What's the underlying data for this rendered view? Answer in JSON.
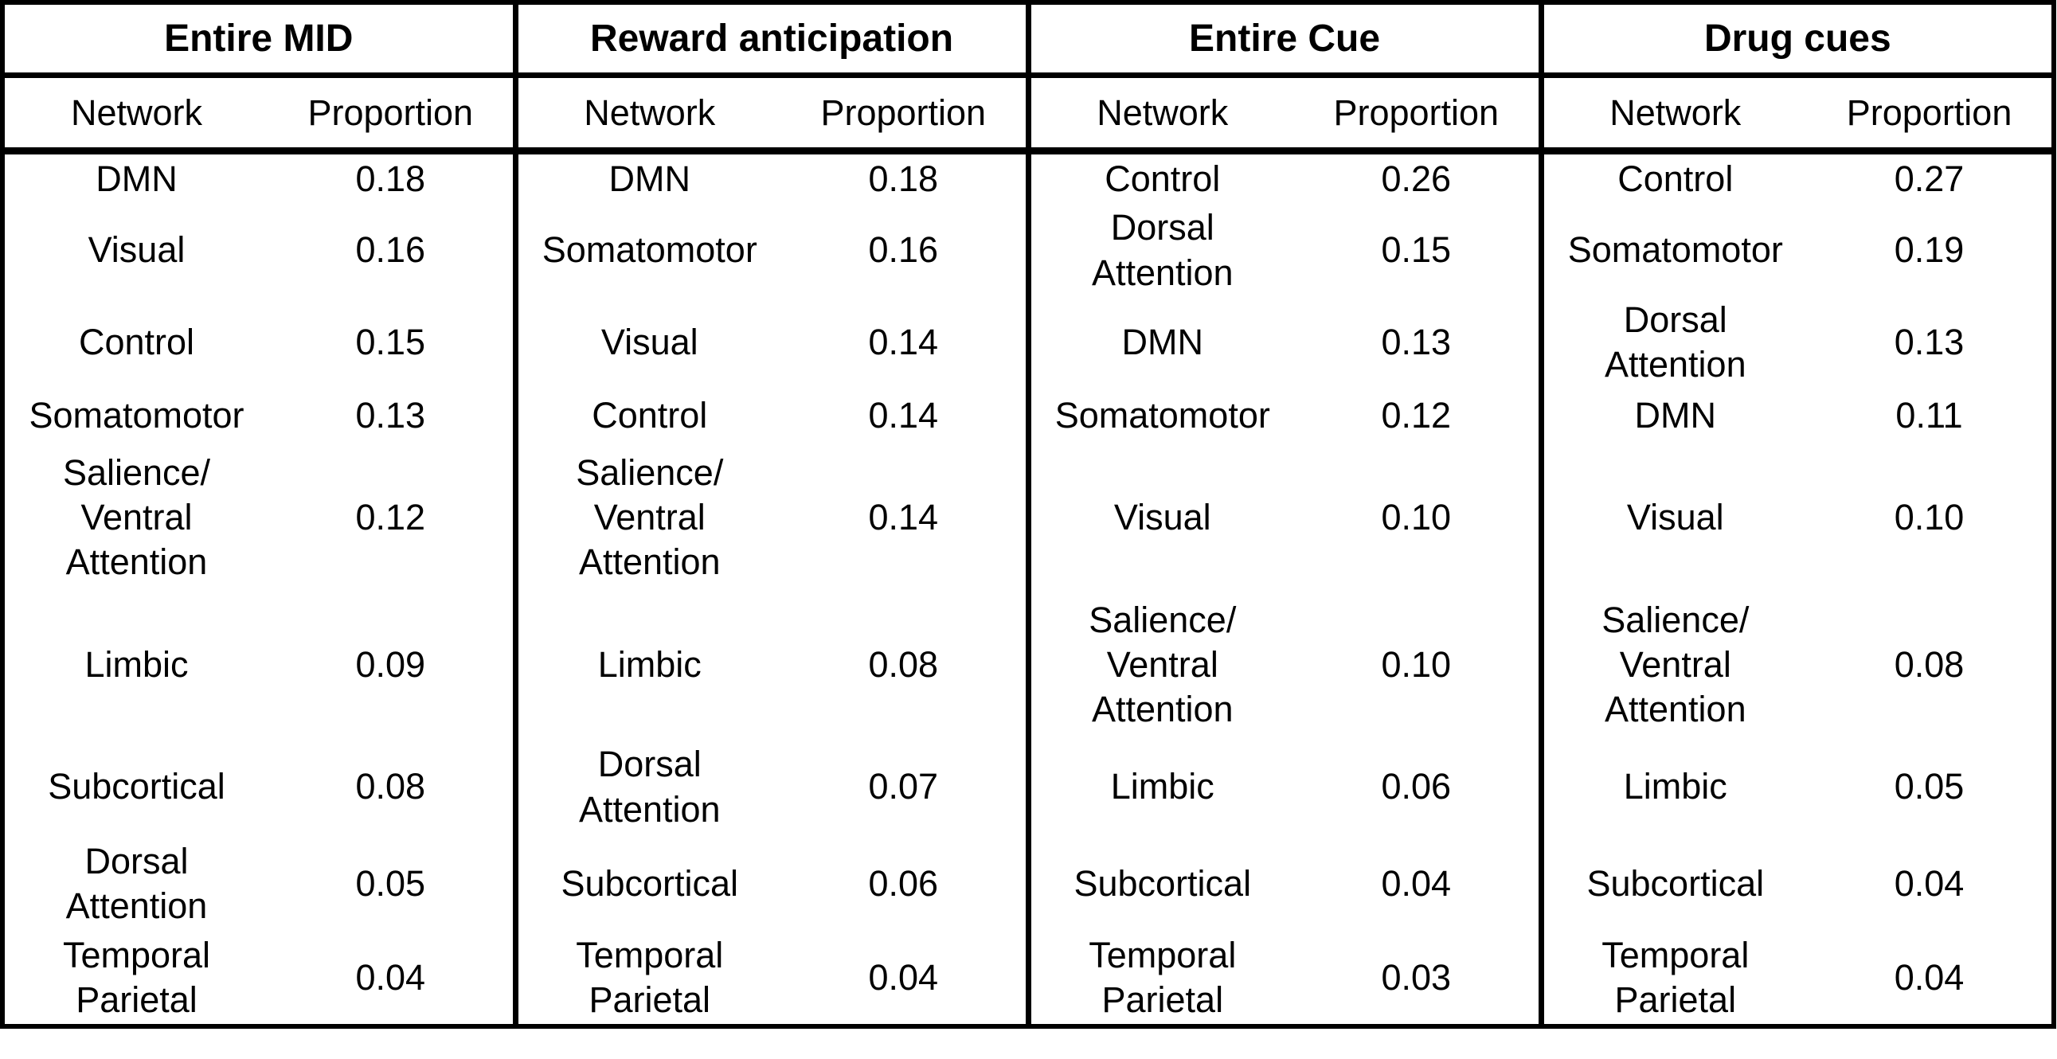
{
  "colors": {
    "text": "#000000",
    "background": "#ffffff",
    "border": "#000000"
  },
  "table": {
    "panels": [
      {
        "title": "Entire MID",
        "columns": [
          "Network",
          "Proportion"
        ],
        "rows": [
          {
            "network": "DMN",
            "proportion": "0.18"
          },
          {
            "network": "Visual",
            "proportion": "0.16"
          },
          {
            "network": "Control",
            "proportion": "0.15"
          },
          {
            "network": "Somatomotor",
            "proportion": "0.13"
          },
          {
            "network": "Salience/\nVentral\nAttention",
            "proportion": "0.12"
          },
          {
            "network": "Limbic",
            "proportion": "0.09"
          },
          {
            "network": "Subcortical",
            "proportion": "0.08"
          },
          {
            "network": "Dorsal\nAttention",
            "proportion": "0.05"
          },
          {
            "network": "Temporal\nParietal",
            "proportion": "0.04"
          }
        ]
      },
      {
        "title": "Reward anticipation",
        "columns": [
          "Network",
          "Proportion"
        ],
        "rows": [
          {
            "network": "DMN",
            "proportion": "0.18"
          },
          {
            "network": "Somatomotor",
            "proportion": "0.16"
          },
          {
            "network": "Visual",
            "proportion": "0.14"
          },
          {
            "network": "Control",
            "proportion": "0.14"
          },
          {
            "network": "Salience/\nVentral\nAttention",
            "proportion": "0.14"
          },
          {
            "network": "Limbic",
            "proportion": "0.08"
          },
          {
            "network": "Dorsal\nAttention",
            "proportion": "0.07"
          },
          {
            "network": "Subcortical",
            "proportion": "0.06"
          },
          {
            "network": "Temporal\nParietal",
            "proportion": "0.04"
          }
        ]
      },
      {
        "title": "Entire Cue",
        "columns": [
          "Network",
          "Proportion"
        ],
        "rows": [
          {
            "network": "Control",
            "proportion": "0.26"
          },
          {
            "network": "Dorsal\nAttention",
            "proportion": "0.15"
          },
          {
            "network": "DMN",
            "proportion": "0.13"
          },
          {
            "network": "Somatomotor",
            "proportion": "0.12"
          },
          {
            "network": "Visual",
            "proportion": "0.10"
          },
          {
            "network": "Salience/\nVentral\nAttention",
            "proportion": "0.10"
          },
          {
            "network": "Limbic",
            "proportion": "0.06"
          },
          {
            "network": "Subcortical",
            "proportion": "0.04"
          },
          {
            "network": "Temporal\nParietal",
            "proportion": "0.03"
          }
        ]
      },
      {
        "title": "Drug cues",
        "columns": [
          "Network",
          "Proportion"
        ],
        "rows": [
          {
            "network": "Control",
            "proportion": "0.27"
          },
          {
            "network": "Somatomotor",
            "proportion": "0.19"
          },
          {
            "network": "Dorsal\nAttention",
            "proportion": "0.13"
          },
          {
            "network": "DMN",
            "proportion": "0.11"
          },
          {
            "network": "Visual",
            "proportion": "0.10"
          },
          {
            "network": "Salience/\nVentral\nAttention",
            "proportion": "0.08"
          },
          {
            "network": "Limbic",
            "proportion": "0.05"
          },
          {
            "network": "Subcortical",
            "proportion": "0.04"
          },
          {
            "network": "Temporal\nParietal",
            "proportion": "0.04"
          }
        ]
      }
    ]
  },
  "chart_data": {
    "type": "table",
    "tables": [
      {
        "title": "Entire MID",
        "columns": [
          "Network",
          "Proportion"
        ],
        "rows": [
          [
            "DMN",
            0.18
          ],
          [
            "Visual",
            0.16
          ],
          [
            "Control",
            0.15
          ],
          [
            "Somatomotor",
            0.13
          ],
          [
            "Salience/Ventral Attention",
            0.12
          ],
          [
            "Limbic",
            0.09
          ],
          [
            "Subcortical",
            0.08
          ],
          [
            "Dorsal Attention",
            0.05
          ],
          [
            "Temporal Parietal",
            0.04
          ]
        ]
      },
      {
        "title": "Reward anticipation",
        "columns": [
          "Network",
          "Proportion"
        ],
        "rows": [
          [
            "DMN",
            0.18
          ],
          [
            "Somatomotor",
            0.16
          ],
          [
            "Visual",
            0.14
          ],
          [
            "Control",
            0.14
          ],
          [
            "Salience/Ventral Attention",
            0.14
          ],
          [
            "Limbic",
            0.08
          ],
          [
            "Dorsal Attention",
            0.07
          ],
          [
            "Subcortical",
            0.06
          ],
          [
            "Temporal Parietal",
            0.04
          ]
        ]
      },
      {
        "title": "Entire Cue",
        "columns": [
          "Network",
          "Proportion"
        ],
        "rows": [
          [
            "Control",
            0.26
          ],
          [
            "Dorsal Attention",
            0.15
          ],
          [
            "DMN",
            0.13
          ],
          [
            "Somatomotor",
            0.12
          ],
          [
            "Visual",
            0.1
          ],
          [
            "Salience/Ventral Attention",
            0.1
          ],
          [
            "Limbic",
            0.06
          ],
          [
            "Subcortical",
            0.04
          ],
          [
            "Temporal Parietal",
            0.03
          ]
        ]
      },
      {
        "title": "Drug cues",
        "columns": [
          "Network",
          "Proportion"
        ],
        "rows": [
          [
            "Control",
            0.27
          ],
          [
            "Somatomotor",
            0.19
          ],
          [
            "Dorsal Attention",
            0.13
          ],
          [
            "DMN",
            0.11
          ],
          [
            "Visual",
            0.1
          ],
          [
            "Salience/Ventral Attention",
            0.08
          ],
          [
            "Limbic",
            0.05
          ],
          [
            "Subcortical",
            0.04
          ],
          [
            "Temporal Parietal",
            0.04
          ]
        ]
      }
    ]
  }
}
